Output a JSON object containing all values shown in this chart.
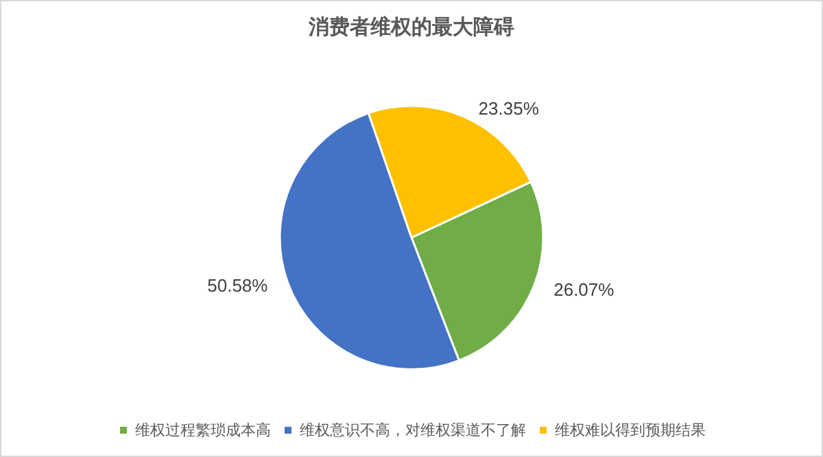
{
  "chart_data": {
    "type": "pie",
    "title": "消费者维权的最大障碍",
    "categories": [
      "维权过程繁琐成本高",
      "维权意识不高，对维权渠道不了解",
      "维权难以得到预期结果"
    ],
    "values": [
      26.07,
      50.58,
      23.35
    ],
    "colors": [
      "#70ad47",
      "#4472c4",
      "#ffc000"
    ],
    "value_labels": [
      "26.07%",
      "50.58%",
      "23.35%"
    ],
    "legend": "bottom"
  }
}
